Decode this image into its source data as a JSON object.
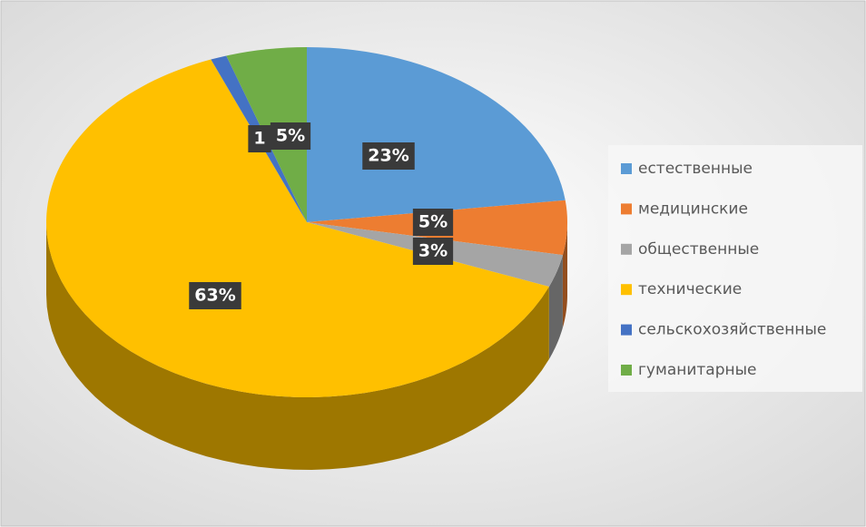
{
  "chart_data": {
    "type": "pie",
    "categories": [
      "естественные",
      "медицинские",
      "общественные",
      "технические",
      "сельскохозяйственные",
      "гуманитарные"
    ],
    "values": [
      23,
      5,
      3,
      63,
      1,
      5
    ],
    "value_labels": [
      "23%",
      "5%",
      "3%",
      "63%",
      "1",
      "5%"
    ],
    "colors": [
      "#5b9bd5",
      "#ed7d31",
      "#a5a5a5",
      "#ffc000",
      "#4472c4",
      "#70ad47"
    ],
    "legend": "right"
  }
}
